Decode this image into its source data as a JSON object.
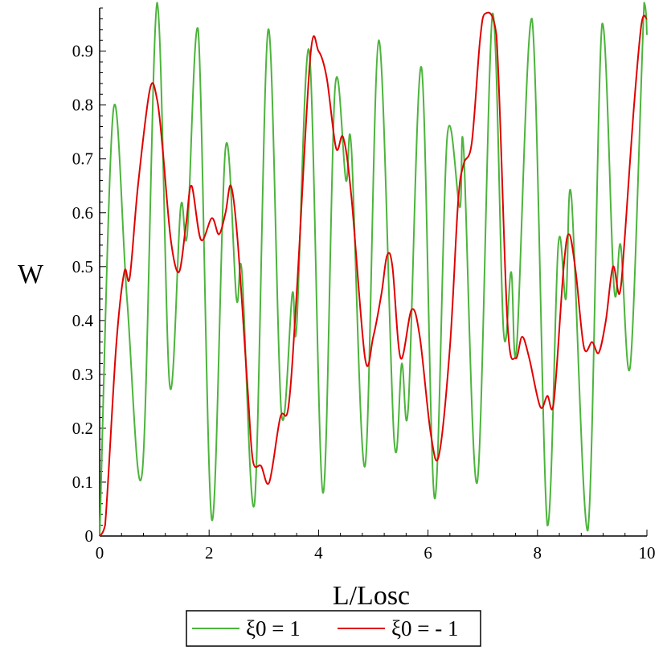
{
  "chart_data": {
    "type": "line",
    "title": "",
    "xlabel": "L/Losc",
    "ylabel": "W",
    "xlim": [
      0,
      10
    ],
    "ylim": [
      0,
      0.98
    ],
    "xticks": [
      "0",
      "2",
      "4",
      "6",
      "8",
      "10"
    ],
    "yticks": [
      "0",
      "0.1",
      "0.2",
      "0.3",
      "0.4",
      "0.5",
      "0.6",
      "0.7",
      "0.8",
      "0.9"
    ],
    "grid": false,
    "legend": "bottom",
    "series": [
      {
        "name": "ξ0 = 1",
        "color": "#4cb43c",
        "x": [
          0,
          0.25,
          0.5,
          0.78,
          1.05,
          1.28,
          1.48,
          1.6,
          1.8,
          2.05,
          2.3,
          2.5,
          2.6,
          2.83,
          3.08,
          3.32,
          3.52,
          3.6,
          3.83,
          4.08,
          4.3,
          4.5,
          4.6,
          4.85,
          5.1,
          5.38,
          5.52,
          5.64,
          5.88,
          6.12,
          6.35,
          6.58,
          6.65,
          6.9,
          7.18,
          7.38,
          7.52,
          7.62,
          7.9,
          8.18,
          8.38,
          8.52,
          8.62,
          8.92,
          9.18,
          9.4,
          9.52,
          9.7,
          9.95,
          10.0
        ],
        "y": [
          0,
          0.79,
          0.44,
          0.12,
          0.99,
          0.28,
          0.61,
          0.56,
          0.94,
          0.03,
          0.72,
          0.44,
          0.49,
          0.06,
          0.94,
          0.23,
          0.45,
          0.39,
          0.9,
          0.08,
          0.83,
          0.66,
          0.72,
          0.13,
          0.92,
          0.18,
          0.32,
          0.24,
          0.87,
          0.07,
          0.74,
          0.61,
          0.72,
          0.1,
          0.97,
          0.38,
          0.49,
          0.35,
          0.96,
          0.02,
          0.54,
          0.44,
          0.63,
          0.01,
          0.95,
          0.46,
          0.54,
          0.32,
          0.99,
          0.93
        ]
      },
      {
        "name": "ξ0 = - 1",
        "color": "#e00000",
        "x": [
          0,
          0.1,
          0.3,
          0.45,
          0.55,
          0.7,
          0.92,
          1.05,
          1.15,
          1.3,
          1.45,
          1.58,
          1.68,
          1.85,
          2.05,
          2.18,
          2.3,
          2.4,
          2.52,
          2.7,
          2.8,
          2.95,
          3.1,
          3.3,
          3.45,
          3.6,
          3.85,
          4.0,
          4.15,
          4.32,
          4.45,
          4.6,
          4.85,
          5.0,
          5.15,
          5.25,
          5.35,
          5.5,
          5.7,
          5.85,
          6.05,
          6.2,
          6.4,
          6.55,
          6.65,
          6.8,
          6.95,
          7.05,
          7.25,
          7.45,
          7.6,
          7.72,
          7.85,
          8.05,
          8.18,
          8.3,
          8.48,
          8.58,
          8.7,
          8.85,
          9.0,
          9.12,
          9.25,
          9.38,
          9.5,
          9.6,
          9.75,
          9.9,
          10.0
        ],
        "y": [
          0,
          0.02,
          0.35,
          0.49,
          0.48,
          0.65,
          0.83,
          0.81,
          0.72,
          0.55,
          0.49,
          0.58,
          0.65,
          0.55,
          0.59,
          0.56,
          0.6,
          0.65,
          0.55,
          0.28,
          0.14,
          0.13,
          0.1,
          0.22,
          0.24,
          0.45,
          0.89,
          0.9,
          0.85,
          0.72,
          0.74,
          0.63,
          0.33,
          0.37,
          0.45,
          0.52,
          0.5,
          0.33,
          0.42,
          0.37,
          0.19,
          0.15,
          0.35,
          0.62,
          0.69,
          0.73,
          0.92,
          0.97,
          0.93,
          0.4,
          0.33,
          0.37,
          0.33,
          0.24,
          0.26,
          0.25,
          0.5,
          0.56,
          0.49,
          0.35,
          0.36,
          0.34,
          0.4,
          0.5,
          0.45,
          0.56,
          0.78,
          0.95,
          0.96
        ]
      }
    ]
  }
}
